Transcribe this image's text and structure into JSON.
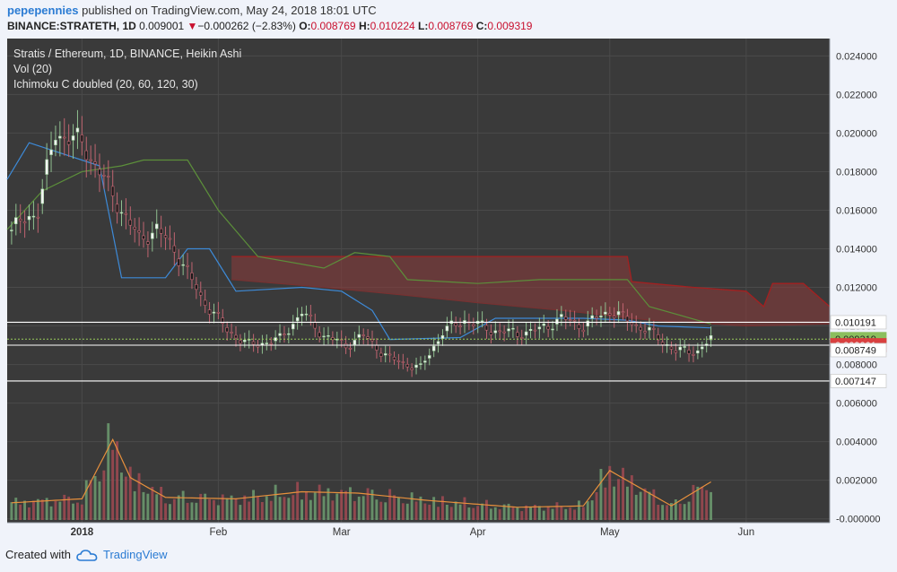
{
  "header": {
    "username": "pepepennies",
    "published": "published on TradingView.com, May 24, 2018 18:01 UTC",
    "symbol": "BINANCE:STRATETH, 1D",
    "last": "0.009001",
    "change_arrow": "▼",
    "change": "−0.000262 (−2.83%)",
    "o_label": "O:",
    "o_val": "0.008769",
    "h_label": "H:",
    "h_val": "0.010224",
    "l_label": "L:",
    "l_val": "0.008769",
    "c_label": "C:",
    "c_val": "0.009319"
  },
  "legend": {
    "title": "Stratis / Ethereum, 1D, BINANCE, Heikin Ashi",
    "vol": "Vol (20)",
    "ichimoku": "Ichimoku C doubled (20, 60, 120, 30)"
  },
  "footer": {
    "created_with": "Created with",
    "brand": "TradingView",
    "logo_icon": "tradingview-cloud-icon"
  },
  "colors": {
    "pane": "#3a3a3a",
    "up": "#6f9e71",
    "down": "#a14a52",
    "cloud": "#8c3b3b",
    "cloud_line": "#a42020",
    "conv": "#3d8ad7",
    "lag": "#5c8f3a",
    "vol_ma": "#e8903c",
    "accent": "#2a7bd3"
  },
  "chart_data": {
    "type": "candlestick",
    "title": "Stratis / Ethereum, 1D, BINANCE, Heikin Ashi",
    "ylim": [
      -0.0002,
      0.0249
    ],
    "y_ticks": [
      "0.024000",
      "0.022000",
      "0.020000",
      "0.018000",
      "0.016000",
      "0.014000",
      "0.012000",
      "0.010000",
      "0.008000",
      "0.006000",
      "0.004000",
      "0.002000",
      "-0.000000"
    ],
    "x_ticks": [
      {
        "label": "2018",
        "date": "2018-01-01"
      },
      {
        "label": "Feb",
        "date": "2018-02-01"
      },
      {
        "label": "Mar",
        "date": "2018-03-01"
      },
      {
        "label": "Apr",
        "date": "2018-04-01"
      },
      {
        "label": "May",
        "date": "2018-05-01"
      },
      {
        "label": "Jun",
        "date": "2018-06-01"
      }
    ],
    "x_range": [
      "2017-12-15",
      "2018-06-20"
    ],
    "price_anchors": [
      [
        "2017-12-15",
        0.0148
      ],
      [
        "2017-12-22",
        0.016
      ],
      [
        "2017-12-26",
        0.02
      ],
      [
        "2018-01-01",
        0.0195
      ],
      [
        "2018-01-05",
        0.018
      ],
      [
        "2018-01-10",
        0.016
      ],
      [
        "2018-01-14",
        0.0145
      ],
      [
        "2018-01-18",
        0.015
      ],
      [
        "2018-01-22",
        0.014
      ],
      [
        "2018-01-28",
        0.0115
      ],
      [
        "2018-02-03",
        0.0098
      ],
      [
        "2018-02-08",
        0.009
      ],
      [
        "2018-02-15",
        0.0093
      ],
      [
        "2018-02-20",
        0.0107
      ],
      [
        "2018-02-25",
        0.0095
      ],
      [
        "2018-03-02",
        0.009
      ],
      [
        "2018-03-06",
        0.0095
      ],
      [
        "2018-03-12",
        0.0083
      ],
      [
        "2018-03-19",
        0.0078
      ],
      [
        "2018-03-24",
        0.0097
      ],
      [
        "2018-03-29",
        0.0103
      ],
      [
        "2018-04-04",
        0.0098
      ],
      [
        "2018-04-10",
        0.0096
      ],
      [
        "2018-04-15",
        0.0098
      ],
      [
        "2018-04-20",
        0.0104
      ],
      [
        "2018-04-25",
        0.01
      ],
      [
        "2018-05-01",
        0.0108
      ],
      [
        "2018-05-05",
        0.0103
      ],
      [
        "2018-05-10",
        0.0097
      ],
      [
        "2018-05-16",
        0.0087
      ],
      [
        "2018-05-21",
        0.0087
      ],
      [
        "2018-05-24",
        0.0093
      ]
    ],
    "cloud_top": [
      [
        "2018-02-04",
        0.0136
      ],
      [
        "2018-05-05",
        0.0136
      ],
      [
        "2018-05-06",
        0.0123
      ],
      [
        "2018-05-20",
        0.012
      ],
      [
        "2018-06-01",
        0.0118
      ],
      [
        "2018-06-05",
        0.011
      ],
      [
        "2018-06-07",
        0.0122
      ],
      [
        "2018-06-14",
        0.0122
      ],
      [
        "2018-06-20",
        0.011
      ]
    ],
    "cloud_bottom": [
      [
        "2018-02-04",
        0.0124
      ],
      [
        "2018-02-25",
        0.012
      ],
      [
        "2018-03-15",
        0.0116
      ],
      [
        "2018-04-01",
        0.0112
      ],
      [
        "2018-04-20",
        0.0108
      ],
      [
        "2018-05-10",
        0.0103
      ],
      [
        "2018-06-01",
        0.01
      ],
      [
        "2018-06-20",
        0.0101
      ]
    ],
    "conversion_line": [
      [
        "2017-12-15",
        0.0176
      ],
      [
        "2017-12-20",
        0.0195
      ],
      [
        "2018-01-05",
        0.0183
      ],
      [
        "2018-01-10",
        0.0125
      ],
      [
        "2018-01-20",
        0.0125
      ],
      [
        "2018-01-25",
        0.014
      ],
      [
        "2018-01-30",
        0.014
      ],
      [
        "2018-02-05",
        0.0118
      ],
      [
        "2018-02-20",
        0.012
      ],
      [
        "2018-03-01",
        0.0118
      ],
      [
        "2018-03-08",
        0.0108
      ],
      [
        "2018-03-12",
        0.0093
      ],
      [
        "2018-03-28",
        0.0094
      ],
      [
        "2018-04-05",
        0.0104
      ],
      [
        "2018-04-25",
        0.0104
      ],
      [
        "2018-05-05",
        0.0103
      ],
      [
        "2018-05-12",
        0.01
      ],
      [
        "2018-05-24",
        0.0099
      ]
    ],
    "lagging_line": [
      [
        "2017-12-15",
        0.015
      ],
      [
        "2017-12-23",
        0.017
      ],
      [
        "2018-01-01",
        0.018
      ],
      [
        "2018-01-10",
        0.0183
      ],
      [
        "2018-01-15",
        0.0186
      ],
      [
        "2018-01-25",
        0.0186
      ],
      [
        "2018-02-01",
        0.016
      ],
      [
        "2018-02-10",
        0.0136
      ],
      [
        "2018-02-25",
        0.013
      ],
      [
        "2018-03-04",
        0.0138
      ],
      [
        "2018-03-12",
        0.0136
      ],
      [
        "2018-03-16",
        0.0124
      ],
      [
        "2018-04-01",
        0.0122
      ],
      [
        "2018-04-15",
        0.0124
      ],
      [
        "2018-05-05",
        0.0124
      ],
      [
        "2018-05-10",
        0.011
      ],
      [
        "2018-05-24",
        0.0101
      ]
    ],
    "volume_anchors": [
      [
        "2017-12-15",
        0.0012
      ],
      [
        "2018-01-01",
        0.0015
      ],
      [
        "2018-01-08",
        0.0057
      ],
      [
        "2018-01-12",
        0.003
      ],
      [
        "2018-01-20",
        0.0016
      ],
      [
        "2018-02-05",
        0.0015
      ],
      [
        "2018-02-20",
        0.002
      ],
      [
        "2018-03-05",
        0.0019
      ],
      [
        "2018-03-20",
        0.0014
      ],
      [
        "2018-04-10",
        0.0009
      ],
      [
        "2018-04-25",
        0.001
      ],
      [
        "2018-05-01",
        0.0035
      ],
      [
        "2018-05-15",
        0.001
      ],
      [
        "2018-05-24",
        0.0027
      ]
    ],
    "price_labels": [
      {
        "text": "0.010191",
        "value": 0.010191,
        "style": "line"
      },
      {
        "text": "0.009319",
        "value": 0.009319,
        "style": "green"
      },
      {
        "text": "0.009001",
        "value": 0.009001,
        "style": "red"
      },
      {
        "text": "0.008749",
        "value": 0.008749,
        "style": "plain"
      },
      {
        "text": "0.007147",
        "value": 0.007147,
        "style": "line"
      }
    ]
  }
}
